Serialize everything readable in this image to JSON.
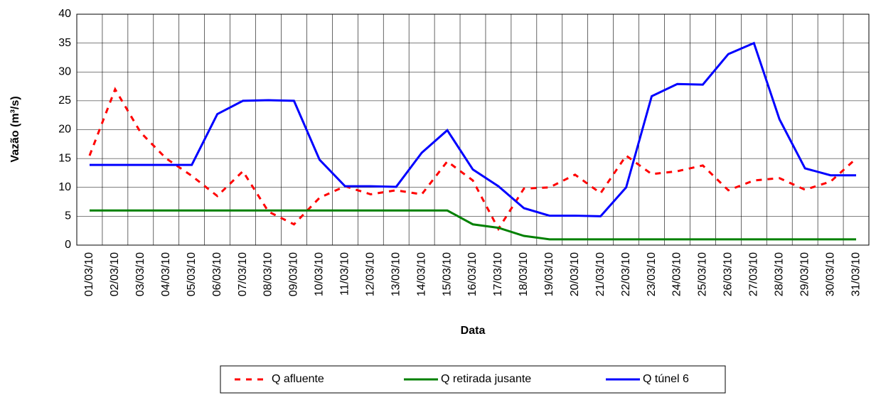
{
  "chart_data": {
    "type": "line",
    "x_label": "Data",
    "y_label": "Vazão (m³/s)",
    "categories": [
      "01/03/10",
      "02/03/10",
      "03/03/10",
      "04/03/10",
      "05/03/10",
      "06/03/10",
      "07/03/10",
      "08/03/10",
      "09/03/10",
      "10/03/10",
      "11/03/10",
      "12/03/10",
      "13/03/10",
      "14/03/10",
      "15/03/10",
      "16/03/10",
      "17/03/10",
      "18/03/10",
      "19/03/10",
      "20/03/10",
      "21/03/10",
      "22/03/10",
      "23/03/10",
      "24/03/10",
      "25/03/10",
      "26/03/10",
      "27/03/10",
      "28/03/10",
      "29/03/10",
      "30/03/10",
      "31/03/10"
    ],
    "series": [
      {
        "name": "Q afluente",
        "color": "#ff0000",
        "dashed": true,
        "values": [
          15.5,
          27,
          19.5,
          15,
          12,
          8.5,
          12.8,
          5.8,
          3.6,
          8.2,
          10.2,
          8.8,
          9.5,
          8.8,
          14.5,
          11.2,
          2.8,
          9.8,
          10,
          12.2,
          9,
          15.5,
          12.3,
          12.8,
          13.8,
          9.5,
          11.2,
          11.6,
          9.6,
          11,
          15
        ]
      },
      {
        "name": "Q retirada jusante",
        "color": "#008000",
        "dashed": false,
        "values": [
          6,
          6,
          6,
          6,
          6,
          6,
          6,
          6,
          6,
          6,
          6,
          6,
          6,
          6,
          6,
          3.6,
          3,
          1.6,
          1,
          1,
          1,
          1,
          1,
          1,
          1,
          1,
          1,
          1,
          1,
          1,
          1
        ]
      },
      {
        "name": "Q túnel 6",
        "color": "#0000ff",
        "dashed": false,
        "values": [
          13.9,
          13.9,
          13.9,
          13.9,
          13.9,
          22.7,
          25,
          25.1,
          25,
          14.8,
          10.2,
          10.2,
          10.1,
          16,
          19.9,
          13.1,
          10.2,
          6.4,
          5.1,
          5.1,
          5,
          10,
          25.8,
          27.9,
          27.8,
          33.1,
          35,
          21.8,
          13.3,
          12.1,
          12.1
        ]
      }
    ],
    "ylim": [
      0,
      40
    ],
    "yticks": [
      0,
      5,
      10,
      15,
      20,
      25,
      30,
      35,
      40
    ],
    "grid": true,
    "legend": "bottom"
  }
}
